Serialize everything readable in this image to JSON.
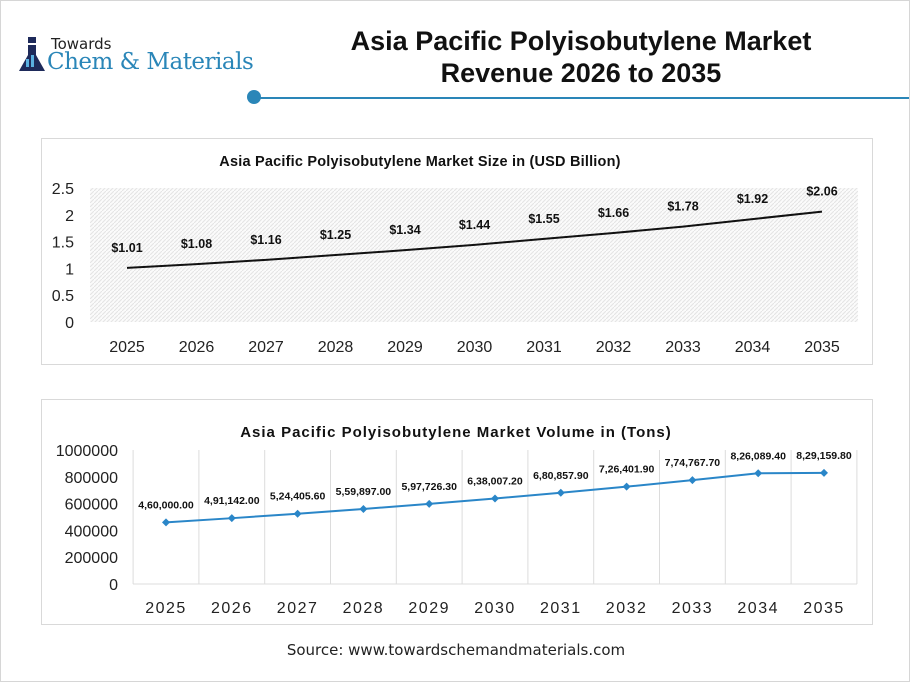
{
  "header": {
    "logo_small": "Towards",
    "logo_main": "Chem & Materials",
    "title_line1": "Asia Pacific Polyisobutylene Market",
    "title_line2": "Revenue 2026 to 2035",
    "accent": "#2a86b8"
  },
  "source": "Source: www.towardschemandmaterials.com",
  "chart_data": [
    {
      "type": "line",
      "title": "Asia Pacific Polyisobutylene Market Size in (USD Billion)",
      "categories": [
        "2025",
        "2026",
        "2027",
        "2028",
        "2029",
        "2030",
        "2031",
        "2032",
        "2033",
        "2034",
        "2035"
      ],
      "values": [
        1.01,
        1.08,
        1.16,
        1.25,
        1.34,
        1.44,
        1.55,
        1.66,
        1.78,
        1.92,
        2.06
      ],
      "labels": [
        "$1.01",
        "$1.08",
        "$1.16",
        "$1.25",
        "$1.34",
        "$1.44",
        "$1.55",
        "$1.66",
        "$1.78",
        "$1.92",
        "$2.06"
      ],
      "yticks": [
        "0",
        "0.5",
        "1",
        "1.5",
        "2",
        "2.5"
      ],
      "ylim": [
        0,
        2.5
      ],
      "line_color": "#111111",
      "background": "hatched"
    },
    {
      "type": "line",
      "title": "Asia Pacific Polyisobutylene Market Volume in (Tons)",
      "categories": [
        "2025",
        "2026",
        "2027",
        "2028",
        "2029",
        "2030",
        "2031",
        "2032",
        "2033",
        "2034",
        "2035"
      ],
      "values": [
        460000,
        491142,
        524405.6,
        559897,
        597726.3,
        638007.2,
        680857.9,
        726401.9,
        774767.7,
        826089.4,
        829159.8
      ],
      "labels": [
        "4,60,000.00",
        "4,91,142.00",
        "5,24,405.60",
        "5,59,897.00",
        "5,97,726.30",
        "6,38,007.20",
        "6,80,857.90",
        "7,26,401.90",
        "7,74,767.70",
        "8,26,089.40",
        "8,29,159.80"
      ],
      "yticks": [
        "0",
        "200000",
        "400000",
        "600000",
        "800000",
        "1000000"
      ],
      "ylim": [
        0,
        1000000
      ],
      "line_color": "#2a86c8",
      "markers": "diamond",
      "grid": "vertical"
    }
  ]
}
